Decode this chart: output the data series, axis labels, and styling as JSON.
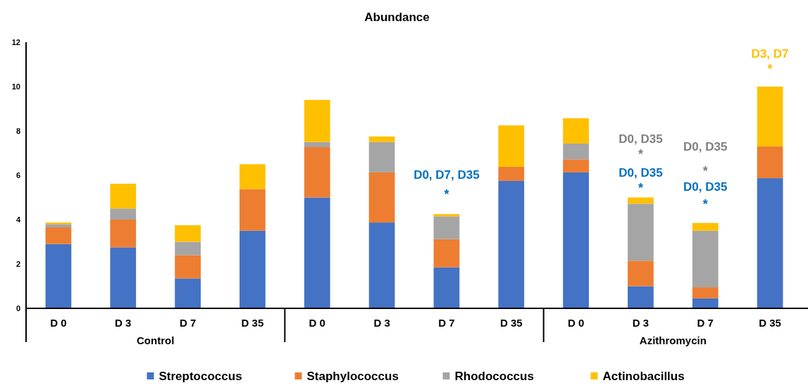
{
  "chart_data": {
    "type": "bar",
    "title": "Abundance",
    "stacked": true,
    "legend": "bottom",
    "grid": false,
    "categories": [
      "D 0",
      "D 3",
      "D 7",
      "D 35",
      "D 0",
      "D 3",
      "D 7",
      "D 35",
      "D 0",
      "D 3",
      "D 7",
      "D 35"
    ],
    "ylim": [
      0,
      12
    ],
    "yticks": [
      0,
      2,
      4,
      6,
      8,
      10,
      12
    ],
    "series": [
      {
        "name": "Streptococcus",
        "color": "#4472c4",
        "values": [
          2.9,
          2.75,
          1.35,
          3.5,
          5.0,
          3.87,
          1.85,
          5.75,
          6.13,
          1.0,
          0.45,
          5.87
        ]
      },
      {
        "name": "Staphylococcus",
        "color": "#ed7d31",
        "values": [
          0.75,
          1.25,
          1.05,
          1.88,
          2.27,
          2.26,
          1.27,
          0.63,
          0.59,
          1.15,
          0.5,
          1.43
        ]
      },
      {
        "name": "Rhodococcus",
        "color": "#a5a5a5",
        "values": [
          0.15,
          0.5,
          0.6,
          0,
          0.23,
          1.37,
          1.03,
          0,
          0.71,
          2.57,
          2.55,
          0
        ]
      },
      {
        "name": "Actinobacillus",
        "color": "#ffc000",
        "values": [
          0.07,
          1.12,
          0.75,
          1.12,
          1.9,
          0.25,
          0.1,
          1.87,
          1.14,
          0.28,
          0.35,
          2.7
        ]
      }
    ],
    "annotations": [
      "D0, D7, D35",
      "*",
      "D0, D35",
      "*",
      "D0, D35",
      "*",
      "D0, D35",
      "*",
      "D0, D35",
      "*",
      "D3, D7",
      "*",
      "Control",
      "Azithromycin"
    ]
  }
}
